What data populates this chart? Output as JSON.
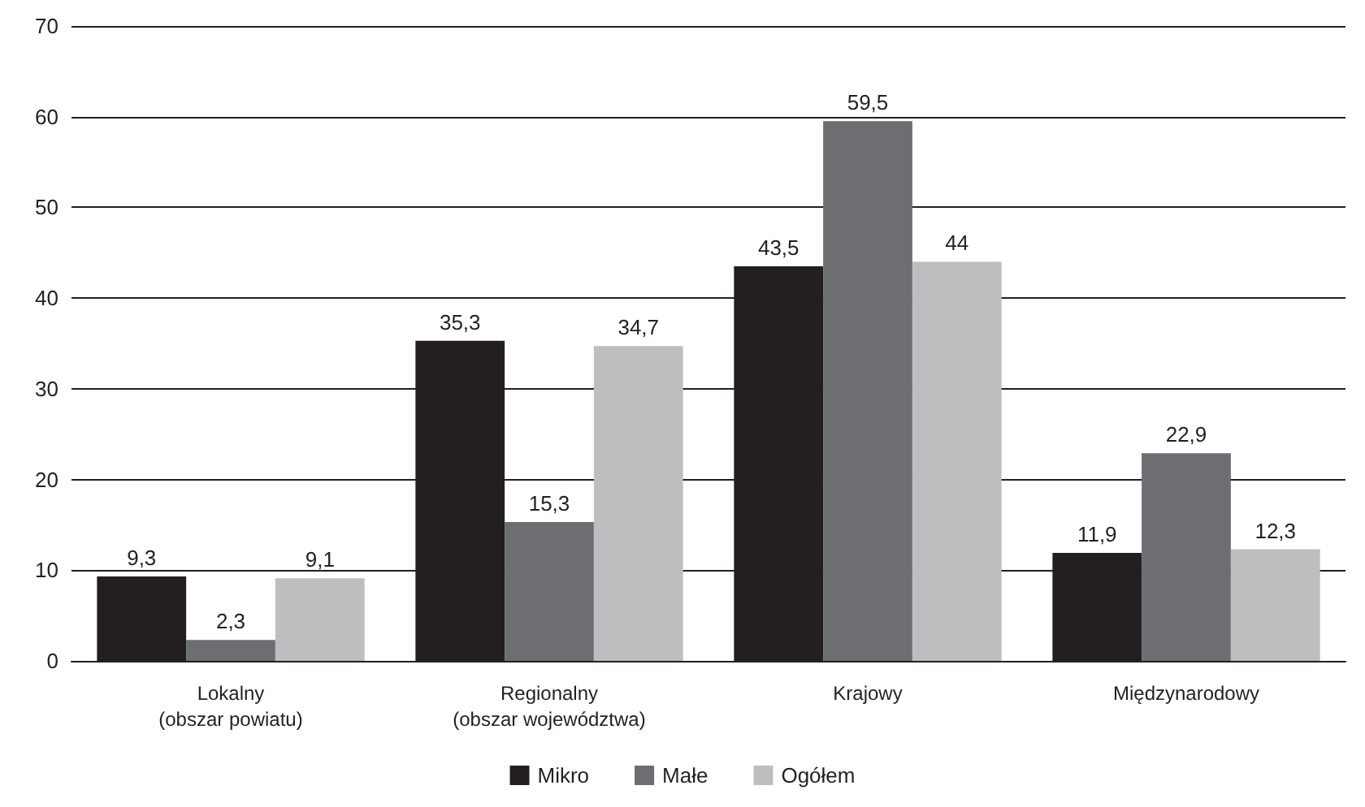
{
  "chart_data": {
    "type": "bar",
    "categories": [
      "Lokalny\n(obszar powiatu)",
      "Regionalny\n(obszar województwa)",
      "Krajowy",
      "Międzynarodowy"
    ],
    "series": [
      {
        "name": "Mikro",
        "color": "#231f20",
        "values": [
          9.3,
          35.3,
          43.5,
          11.9
        ],
        "value_labels": [
          "9,3",
          "35,3",
          "43,5",
          "11,9"
        ]
      },
      {
        "name": "Małe",
        "color": "#6d6e71",
        "values": [
          2.3,
          15.3,
          59.5,
          22.9
        ],
        "value_labels": [
          "2,3",
          "15,3",
          "59,5",
          "22,9"
        ]
      },
      {
        "name": "Ogółem",
        "color": "#bcbec0",
        "values": [
          9.1,
          34.7,
          44,
          12.3
        ],
        "value_labels": [
          "9,1",
          "34,7",
          "44",
          "12,3"
        ]
      }
    ],
    "ylim": [
      0,
      70
    ],
    "yticks": [
      0,
      10,
      20,
      30,
      40,
      50,
      60,
      70
    ],
    "grid": "y",
    "legend": "bottom"
  }
}
